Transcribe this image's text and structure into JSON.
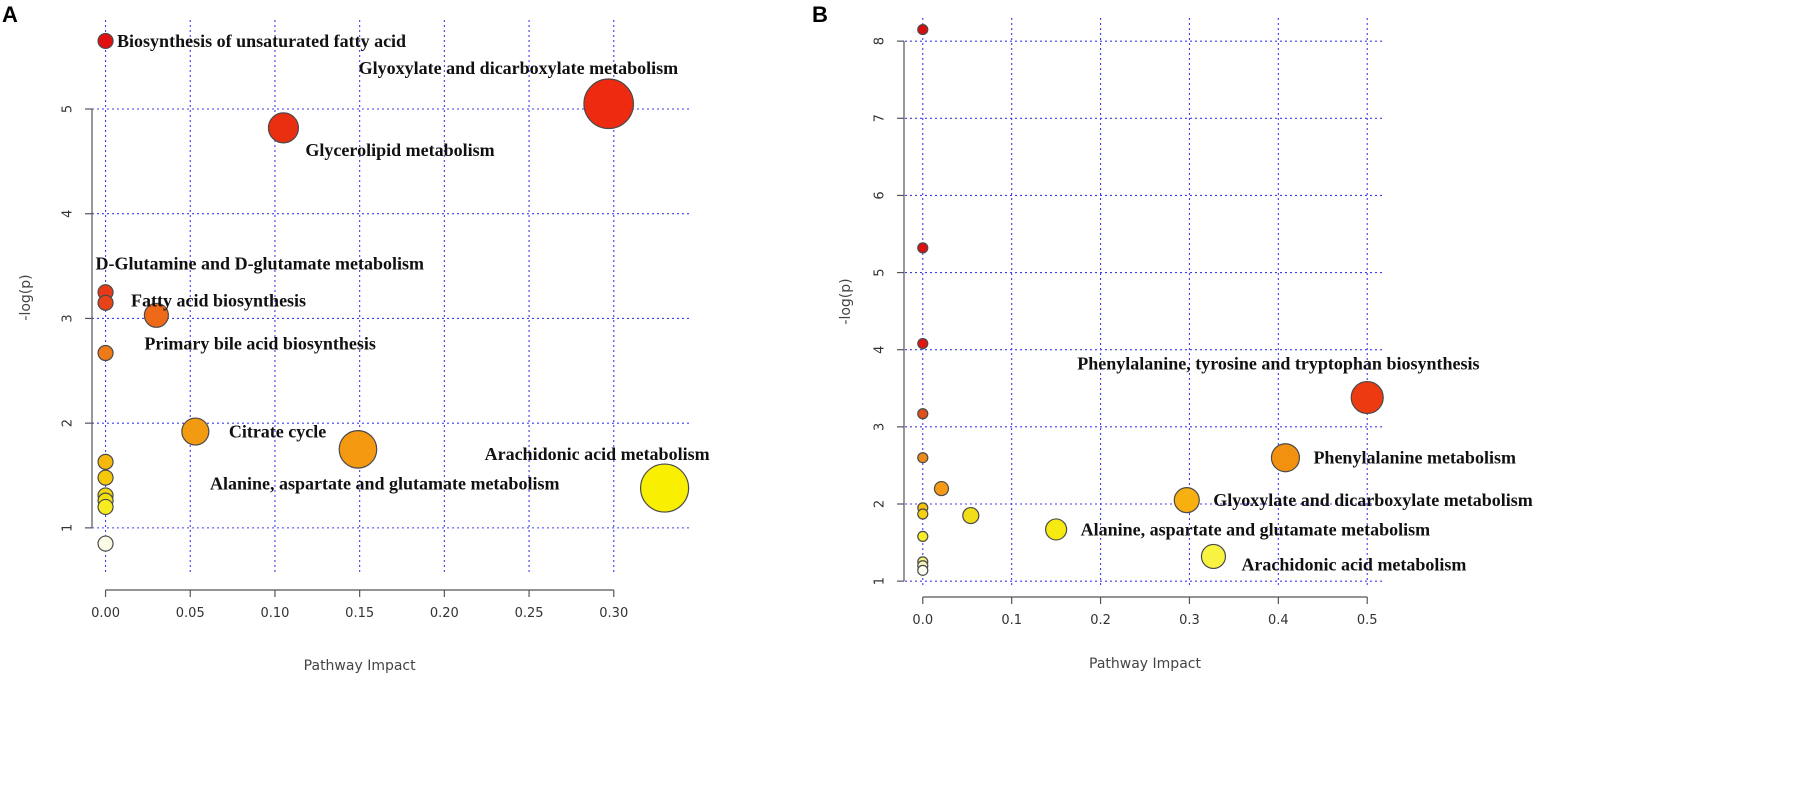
{
  "colors": {
    "grid": "#3d3df0",
    "axis": "#555555"
  },
  "chart_data": [
    {
      "type": "scatter",
      "panel": "A",
      "xlabel": "Pathway Impact",
      "ylabel": "-log(p)",
      "xlim": [
        -0.008,
        0.345
      ],
      "ylim": [
        0.55,
        5.85
      ],
      "x_ticks": [
        0.0,
        0.05,
        0.1,
        0.15,
        0.2,
        0.25,
        0.3
      ],
      "x_tick_labels": [
        "0.00",
        "0.05",
        "0.10",
        "0.15",
        "0.20",
        "0.25",
        "0.30"
      ],
      "y_ticks": [
        1,
        2,
        3,
        4,
        5
      ],
      "y_tick_labels": [
        "1",
        "2",
        "3",
        "4",
        "5"
      ],
      "grid": true,
      "points": [
        {
          "x": 0.0,
          "y": 5.65,
          "size": 1.0,
          "color": "#e01010",
          "label": "Biosynthesis of unsaturated fatty acid",
          "label_pos": "right"
        },
        {
          "x": 0.297,
          "y": 5.05,
          "size": 3.3,
          "color": "#ee2a10",
          "label": "Glyoxylate and dicarboxylate metabolism",
          "label_pos": "above-left"
        },
        {
          "x": 0.105,
          "y": 4.82,
          "size": 2.0,
          "color": "#ea2e10",
          "label": "Glycerolipid metabolism",
          "label_pos": "below-right"
        },
        {
          "x": 0.0,
          "y": 3.25,
          "size": 1.0,
          "color": "#e83a18",
          "label": "D-Glutamine and D-glutamate metabolism",
          "label_pos": "above"
        },
        {
          "x": 0.0,
          "y": 3.15,
          "size": 1.0,
          "color": "#e84318",
          "label": "Fatty acid biosynthesis",
          "label_pos": "right"
        },
        {
          "x": 0.03,
          "y": 3.03,
          "size": 1.6,
          "color": "#ee6a18",
          "label": "Primary bile acid biosynthesis",
          "label_pos": "below"
        },
        {
          "x": 0.0,
          "y": 2.67,
          "size": 1.0,
          "color": "#ee7a18",
          "label": "",
          "label_pos": "none"
        },
        {
          "x": 0.053,
          "y": 1.92,
          "size": 1.8,
          "color": "#f29a10",
          "label": "Citrate  cycle",
          "label_pos": "right"
        },
        {
          "x": 0.149,
          "y": 1.75,
          "size": 2.5,
          "color": "#f59a10",
          "label": "Alanine, aspartate and glutamate metabolism",
          "label_pos": "below"
        },
        {
          "x": 0.33,
          "y": 1.38,
          "size": 3.2,
          "color": "#f8f000",
          "label": "Arachidonic acid metabolism",
          "label_pos": "above-left"
        },
        {
          "x": 0.0,
          "y": 1.63,
          "size": 1.0,
          "color": "#f6b80a",
          "label": "",
          "label_pos": "none"
        },
        {
          "x": 0.0,
          "y": 1.48,
          "size": 1.0,
          "color": "#f6c80a",
          "label": "",
          "label_pos": "none"
        },
        {
          "x": 0.0,
          "y": 1.31,
          "size": 1.0,
          "color": "#f2d810",
          "label": "",
          "label_pos": "none"
        },
        {
          "x": 0.0,
          "y": 1.26,
          "size": 1.0,
          "color": "#f0e010",
          "label": "",
          "label_pos": "none"
        },
        {
          "x": 0.0,
          "y": 1.2,
          "size": 1.0,
          "color": "#f6ec20",
          "label": "",
          "label_pos": "none"
        },
        {
          "x": 0.0,
          "y": 0.85,
          "size": 1.0,
          "color": "#fbfbe8",
          "label": "",
          "label_pos": "none"
        }
      ]
    },
    {
      "type": "scatter",
      "panel": "B",
      "xlabel": "Pathway Impact",
      "ylabel": "-log(p)",
      "xlim": [
        -0.02,
        0.52
      ],
      "ylim": [
        0.95,
        8.3
      ],
      "x_ticks": [
        0.0,
        0.1,
        0.2,
        0.3,
        0.4,
        0.5
      ],
      "x_tick_labels": [
        "0.0",
        "0.1",
        "0.2",
        "0.3",
        "0.4",
        "0.5"
      ],
      "y_ticks": [
        1,
        2,
        3,
        4,
        5,
        6,
        7,
        8
      ],
      "y_tick_labels": [
        "1",
        "2",
        "3",
        "4",
        "5",
        "6",
        "7",
        "8"
      ],
      "grid": true,
      "points": [
        {
          "x": 0.0,
          "y": 8.15,
          "size": 1.0,
          "color": "#d80c0c",
          "label": "",
          "label_pos": "none"
        },
        {
          "x": 0.0,
          "y": 5.32,
          "size": 1.0,
          "color": "#dc1010",
          "label": "",
          "label_pos": "none"
        },
        {
          "x": 0.0,
          "y": 4.08,
          "size": 1.0,
          "color": "#e01410",
          "label": "",
          "label_pos": "none"
        },
        {
          "x": 0.5,
          "y": 3.38,
          "size": 3.2,
          "color": "#ee3a10",
          "label": "Phenylalanine, tyrosine and tryptophan biosynthesis",
          "label_pos": "above-left"
        },
        {
          "x": 0.0,
          "y": 3.17,
          "size": 1.0,
          "color": "#e05018",
          "label": "",
          "label_pos": "none"
        },
        {
          "x": 0.408,
          "y": 2.6,
          "size": 2.8,
          "color": "#f29010",
          "label": "Phenylalanine metabolism",
          "label_pos": "right"
        },
        {
          "x": 0.0,
          "y": 2.6,
          "size": 1.0,
          "color": "#ee8a18",
          "label": "",
          "label_pos": "none"
        },
        {
          "x": 0.021,
          "y": 2.2,
          "size": 1.4,
          "color": "#f49a14",
          "label": "",
          "label_pos": "none"
        },
        {
          "x": 0.297,
          "y": 2.05,
          "size": 2.5,
          "color": "#f8b010",
          "label": "Glyoxylate and dicarboxylate metabolism",
          "label_pos": "right"
        },
        {
          "x": 0.0,
          "y": 1.95,
          "size": 1.0,
          "color": "#f6c00e",
          "label": "",
          "label_pos": "none"
        },
        {
          "x": 0.0,
          "y": 1.87,
          "size": 1.0,
          "color": "#f6d010",
          "label": "",
          "label_pos": "none"
        },
        {
          "x": 0.054,
          "y": 1.85,
          "size": 1.6,
          "color": "#f2de18",
          "label": "",
          "label_pos": "none"
        },
        {
          "x": 0.15,
          "y": 1.67,
          "size": 2.1,
          "color": "#f6ea10",
          "label": "Alanine, aspartate and glutamate metabolism",
          "label_pos": "right"
        },
        {
          "x": 0.0,
          "y": 1.58,
          "size": 1.0,
          "color": "#f8ee28",
          "label": "",
          "label_pos": "none"
        },
        {
          "x": 0.327,
          "y": 1.32,
          "size": 2.4,
          "color": "#f8f340",
          "label": "Arachidonic acid metabolism",
          "label_pos": "right"
        },
        {
          "x": 0.0,
          "y": 1.25,
          "size": 1.0,
          "color": "#f4f080",
          "label": "",
          "label_pos": "none"
        },
        {
          "x": 0.0,
          "y": 1.2,
          "size": 1.0,
          "color": "#f8f6c0",
          "label": "",
          "label_pos": "none"
        },
        {
          "x": 0.0,
          "y": 1.14,
          "size": 1.0,
          "color": "#fdfdf0",
          "label": "",
          "label_pos": "none"
        }
      ]
    }
  ]
}
